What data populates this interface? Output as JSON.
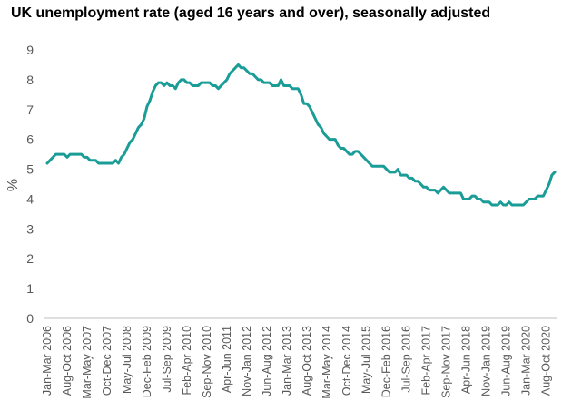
{
  "chart_data": {
    "type": "line",
    "title": "UK unemployment rate (aged 16 years and over), seasonally adjusted",
    "ylabel": "%",
    "xlabel": "",
    "ylim": [
      0,
      9
    ],
    "yticks": [
      0,
      1,
      2,
      3,
      4,
      5,
      6,
      7,
      8,
      9
    ],
    "grid": false,
    "legend": "none",
    "line_color": "#1A9C97",
    "x_tick_labels": [
      "Jan-Mar 2006",
      "Aug-Oct 2006",
      "Mar-May 2007",
      "Oct-Dec 2007",
      "May-Jul 2008",
      "Dec-Feb 2009",
      "Jul-Sep 2009",
      "Feb-Apr 2010",
      "Sep-Nov 2010",
      "Apr-Jun 2011",
      "Nov-Jan 2012",
      "Jun-Aug 2012",
      "Jan-Mar 2013",
      "Aug-Oct 2013",
      "Mar-May 2014",
      "Oct-Dec 2014",
      "May-Jul 2015",
      "Dec-Feb 2016",
      "Jul-Sep 2016",
      "Feb-Apr 2017",
      "Sep-Nov 2017",
      "Apr-Jun 2018",
      "Nov-Jan 2019",
      "Jun-Aug 2019",
      "Jan-Mar 2020",
      "Aug-Oct 2020"
    ],
    "series": [
      {
        "values": [
          5.2,
          5.3,
          5.4,
          5.5,
          5.5,
          5.5,
          5.5,
          5.4,
          5.5,
          5.5,
          5.5,
          5.5,
          5.5,
          5.4,
          5.4,
          5.3,
          5.3,
          5.3,
          5.2,
          5.2,
          5.2,
          5.2,
          5.2,
          5.2,
          5.3,
          5.2,
          5.4,
          5.5,
          5.7,
          5.9,
          6.0,
          6.2,
          6.4,
          6.5,
          6.7,
          7.1,
          7.3,
          7.6,
          7.8,
          7.9,
          7.9,
          7.8,
          7.9,
          7.8,
          7.8,
          7.7,
          7.9,
          8.0,
          8.0,
          7.9,
          7.9,
          7.8,
          7.8,
          7.8,
          7.9,
          7.9,
          7.9,
          7.9,
          7.8,
          7.8,
          7.7,
          7.8,
          7.9,
          8.0,
          8.2,
          8.3,
          8.4,
          8.5,
          8.4,
          8.4,
          8.3,
          8.2,
          8.2,
          8.1,
          8.0,
          8.0,
          7.9,
          7.9,
          7.9,
          7.8,
          7.8,
          7.8,
          8.0,
          7.8,
          7.8,
          7.8,
          7.7,
          7.7,
          7.7,
          7.5,
          7.2,
          7.2,
          7.1,
          6.9,
          6.7,
          6.5,
          6.4,
          6.2,
          6.1,
          6.0,
          6.0,
          6.0,
          5.8,
          5.7,
          5.7,
          5.6,
          5.5,
          5.5,
          5.6,
          5.6,
          5.5,
          5.4,
          5.3,
          5.2,
          5.1,
          5.1,
          5.1,
          5.1,
          5.1,
          5.0,
          4.9,
          4.9,
          4.9,
          5.0,
          4.8,
          4.8,
          4.8,
          4.7,
          4.7,
          4.6,
          4.6,
          4.5,
          4.4,
          4.4,
          4.3,
          4.3,
          4.3,
          4.2,
          4.3,
          4.4,
          4.3,
          4.2,
          4.2,
          4.2,
          4.2,
          4.2,
          4.0,
          4.0,
          4.0,
          4.1,
          4.1,
          4.0,
          4.0,
          3.9,
          3.9,
          3.9,
          3.8,
          3.8,
          3.8,
          3.9,
          3.8,
          3.8,
          3.9,
          3.8,
          3.8,
          3.8,
          3.8,
          3.8,
          3.9,
          4.0,
          4.0,
          4.0,
          4.1,
          4.1,
          4.1,
          4.3,
          4.5,
          4.8,
          4.9
        ]
      }
    ]
  }
}
